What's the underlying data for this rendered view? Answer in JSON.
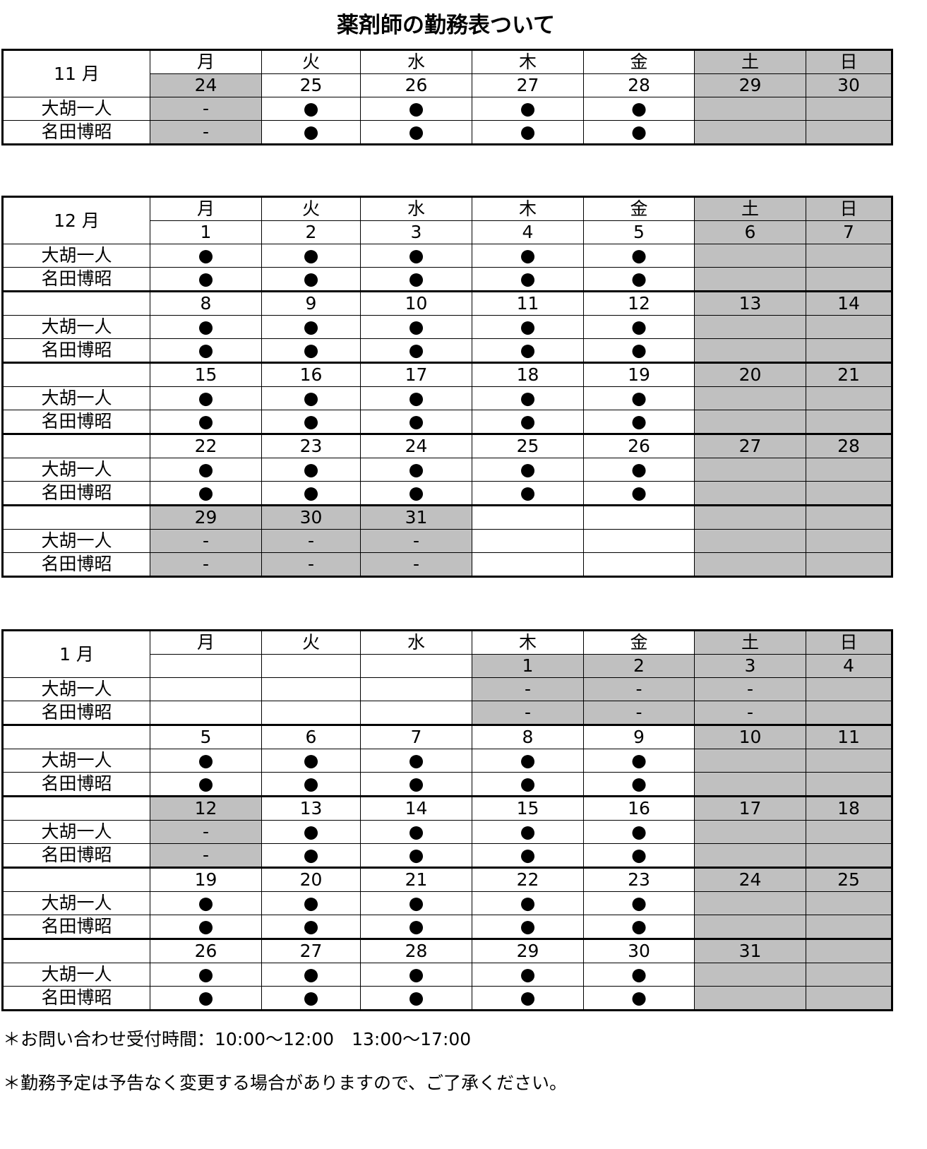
{
  "title": "薬剤師の勤務表ついて",
  "weekdays": [
    "月",
    "火",
    "水",
    "木",
    "金",
    "土",
    "日"
  ],
  "staff": [
    "大胡一人",
    "名田博昭"
  ],
  "colors": {
    "shaded": "#c0c0c0",
    "border": "#000000"
  },
  "months": [
    {
      "label": "11 月",
      "header_shaded": [
        false,
        false,
        false,
        false,
        false,
        true,
        true
      ],
      "weeks": [
        {
          "days": [
            "24",
            "25",
            "26",
            "27",
            "28",
            "29",
            "30"
          ],
          "s0": [
            "-",
            "●",
            "●",
            "●",
            "●",
            "",
            ""
          ],
          "s1": [
            "-",
            "●",
            "●",
            "●",
            "●",
            "",
            ""
          ],
          "shaded": [
            true,
            false,
            false,
            false,
            false,
            true,
            true
          ]
        }
      ]
    },
    {
      "label": "12 月",
      "header_shaded": [
        false,
        false,
        false,
        false,
        false,
        true,
        true
      ],
      "weeks": [
        {
          "days": [
            "1",
            "2",
            "3",
            "4",
            "5",
            "6",
            "7"
          ],
          "s0": [
            "●",
            "●",
            "●",
            "●",
            "●",
            "",
            ""
          ],
          "s1": [
            "●",
            "●",
            "●",
            "●",
            "●",
            "",
            ""
          ],
          "shaded": [
            false,
            false,
            false,
            false,
            false,
            true,
            true
          ]
        },
        {
          "days": [
            "8",
            "9",
            "10",
            "11",
            "12",
            "13",
            "14"
          ],
          "s0": [
            "●",
            "●",
            "●",
            "●",
            "●",
            "",
            ""
          ],
          "s1": [
            "●",
            "●",
            "●",
            "●",
            "●",
            "",
            ""
          ],
          "shaded": [
            false,
            false,
            false,
            false,
            false,
            true,
            true
          ]
        },
        {
          "days": [
            "15",
            "16",
            "17",
            "18",
            "19",
            "20",
            "21"
          ],
          "s0": [
            "●",
            "●",
            "●",
            "●",
            "●",
            "",
            ""
          ],
          "s1": [
            "●",
            "●",
            "●",
            "●",
            "●",
            "",
            ""
          ],
          "shaded": [
            false,
            false,
            false,
            false,
            false,
            true,
            true
          ]
        },
        {
          "days": [
            "22",
            "23",
            "24",
            "25",
            "26",
            "27",
            "28"
          ],
          "s0": [
            "●",
            "●",
            "●",
            "●",
            "●",
            "",
            ""
          ],
          "s1": [
            "●",
            "●",
            "●",
            "●",
            "●",
            "",
            ""
          ],
          "shaded": [
            false,
            false,
            false,
            false,
            false,
            true,
            true
          ]
        },
        {
          "days": [
            "29",
            "30",
            "31",
            "",
            "",
            "",
            ""
          ],
          "s0": [
            "-",
            "-",
            "-",
            "",
            "",
            "",
            ""
          ],
          "s1": [
            "-",
            "-",
            "-",
            "",
            "",
            "",
            ""
          ],
          "shaded": [
            true,
            true,
            true,
            false,
            false,
            true,
            true
          ]
        }
      ]
    },
    {
      "label": "1 月",
      "header_shaded": [
        false,
        false,
        false,
        false,
        false,
        true,
        true
      ],
      "weeks": [
        {
          "days": [
            "",
            "",
            "",
            "1",
            "2",
            "3",
            "4"
          ],
          "s0": [
            "",
            "",
            "",
            "-",
            "-",
            "-",
            ""
          ],
          "s1": [
            "",
            "",
            "",
            "-",
            "-",
            "-",
            ""
          ],
          "shaded": [
            false,
            false,
            false,
            true,
            true,
            true,
            true
          ]
        },
        {
          "days": [
            "5",
            "6",
            "7",
            "8",
            "9",
            "10",
            "11"
          ],
          "s0": [
            "●",
            "●",
            "●",
            "●",
            "●",
            "",
            ""
          ],
          "s1": [
            "●",
            "●",
            "●",
            "●",
            "●",
            "",
            ""
          ],
          "shaded": [
            false,
            false,
            false,
            false,
            false,
            true,
            true
          ]
        },
        {
          "days": [
            "12",
            "13",
            "14",
            "15",
            "16",
            "17",
            "18"
          ],
          "s0": [
            "-",
            "●",
            "●",
            "●",
            "●",
            "",
            ""
          ],
          "s1": [
            "-",
            "●",
            "●",
            "●",
            "●",
            "",
            ""
          ],
          "shaded": [
            true,
            false,
            false,
            false,
            false,
            true,
            true
          ]
        },
        {
          "days": [
            "19",
            "20",
            "21",
            "22",
            "23",
            "24",
            "25"
          ],
          "s0": [
            "●",
            "●",
            "●",
            "●",
            "●",
            "",
            ""
          ],
          "s1": [
            "●",
            "●",
            "●",
            "●",
            "●",
            "",
            ""
          ],
          "shaded": [
            false,
            false,
            false,
            false,
            false,
            true,
            true
          ]
        },
        {
          "days": [
            "26",
            "27",
            "28",
            "29",
            "30",
            "31",
            ""
          ],
          "s0": [
            "●",
            "●",
            "●",
            "●",
            "●",
            "",
            ""
          ],
          "s1": [
            "●",
            "●",
            "●",
            "●",
            "●",
            "",
            ""
          ],
          "shaded": [
            false,
            false,
            false,
            false,
            false,
            true,
            true
          ]
        }
      ]
    }
  ],
  "notes": [
    "＊お問い合わせ受付時間：10:00～12:00　13:00～17:00",
    "＊勤務予定は予告なく変更する場合がありますので、ご了承ください。"
  ]
}
